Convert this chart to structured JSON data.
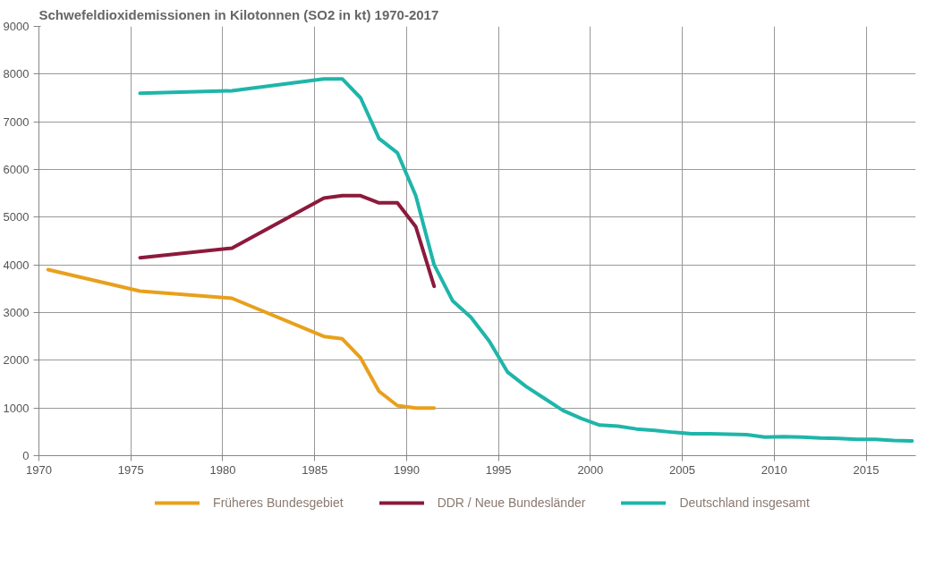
{
  "chart_data": {
    "type": "line",
    "title": "Schwefeldioxidemissionen in Kilotonnen (SO2 in kt) 1970-2017",
    "xlim": [
      1970,
      2017.7
    ],
    "xticks": [
      1970,
      1975,
      1980,
      1985,
      1990,
      1995,
      2000,
      2005,
      2010,
      2015
    ],
    "ylim": [
      0,
      9000
    ],
    "yticks": [
      0,
      1000,
      2000,
      3000,
      4000,
      5000,
      6000,
      7000,
      8000,
      9000
    ],
    "grid": true,
    "legend": "bottom",
    "line_style": "solid",
    "series": [
      {
        "name": "Früheres Bundesgebiet",
        "color": "#e8a01c",
        "x": [
          1970.5,
          1975.5,
          1980.5,
          1985.5,
          1986.5,
          1987.5,
          1988.5,
          1989.5,
          1990.5,
          1991.5
        ],
        "values": [
          3900,
          3450,
          3300,
          2500,
          2450,
          2050,
          1350,
          1050,
          1000,
          1000
        ]
      },
      {
        "name": "DDR / Neue Bundesländer",
        "color": "#8c1a3c",
        "x": [
          1975.5,
          1980.5,
          1985.5,
          1986.5,
          1987.5,
          1988.5,
          1989.5,
          1990.5,
          1991.5
        ],
        "values": [
          4150,
          4350,
          5400,
          5450,
          5450,
          5300,
          5300,
          4800,
          3550
        ]
      },
      {
        "name": "Deutschland insgesamt",
        "color": "#1fb5aa",
        "x": [
          1975.5,
          1980.5,
          1985.5,
          1986.5,
          1987.5,
          1988.5,
          1989.5,
          1990.5,
          1991.5,
          1992.5,
          1993.5,
          1994.5,
          1995.5,
          1996.5,
          1997.5,
          1998.5,
          1999.5,
          2000.5,
          2001.5,
          2002.5,
          2003.5,
          2004.5,
          2005.5,
          2006.5,
          2007.5,
          2008.5,
          2009.5,
          2010.5,
          2011.5,
          2012.5,
          2013.5,
          2014.5,
          2015.5,
          2016.5,
          2017.5
        ],
        "values": [
          7600,
          7650,
          7900,
          7900,
          7500,
          6650,
          6350,
          5450,
          4000,
          3250,
          2900,
          2400,
          1750,
          1450,
          1200,
          950,
          780,
          640,
          620,
          560,
          530,
          490,
          460,
          460,
          450,
          440,
          390,
          400,
          390,
          370,
          360,
          340,
          340,
          320,
          310
        ]
      }
    ]
  }
}
